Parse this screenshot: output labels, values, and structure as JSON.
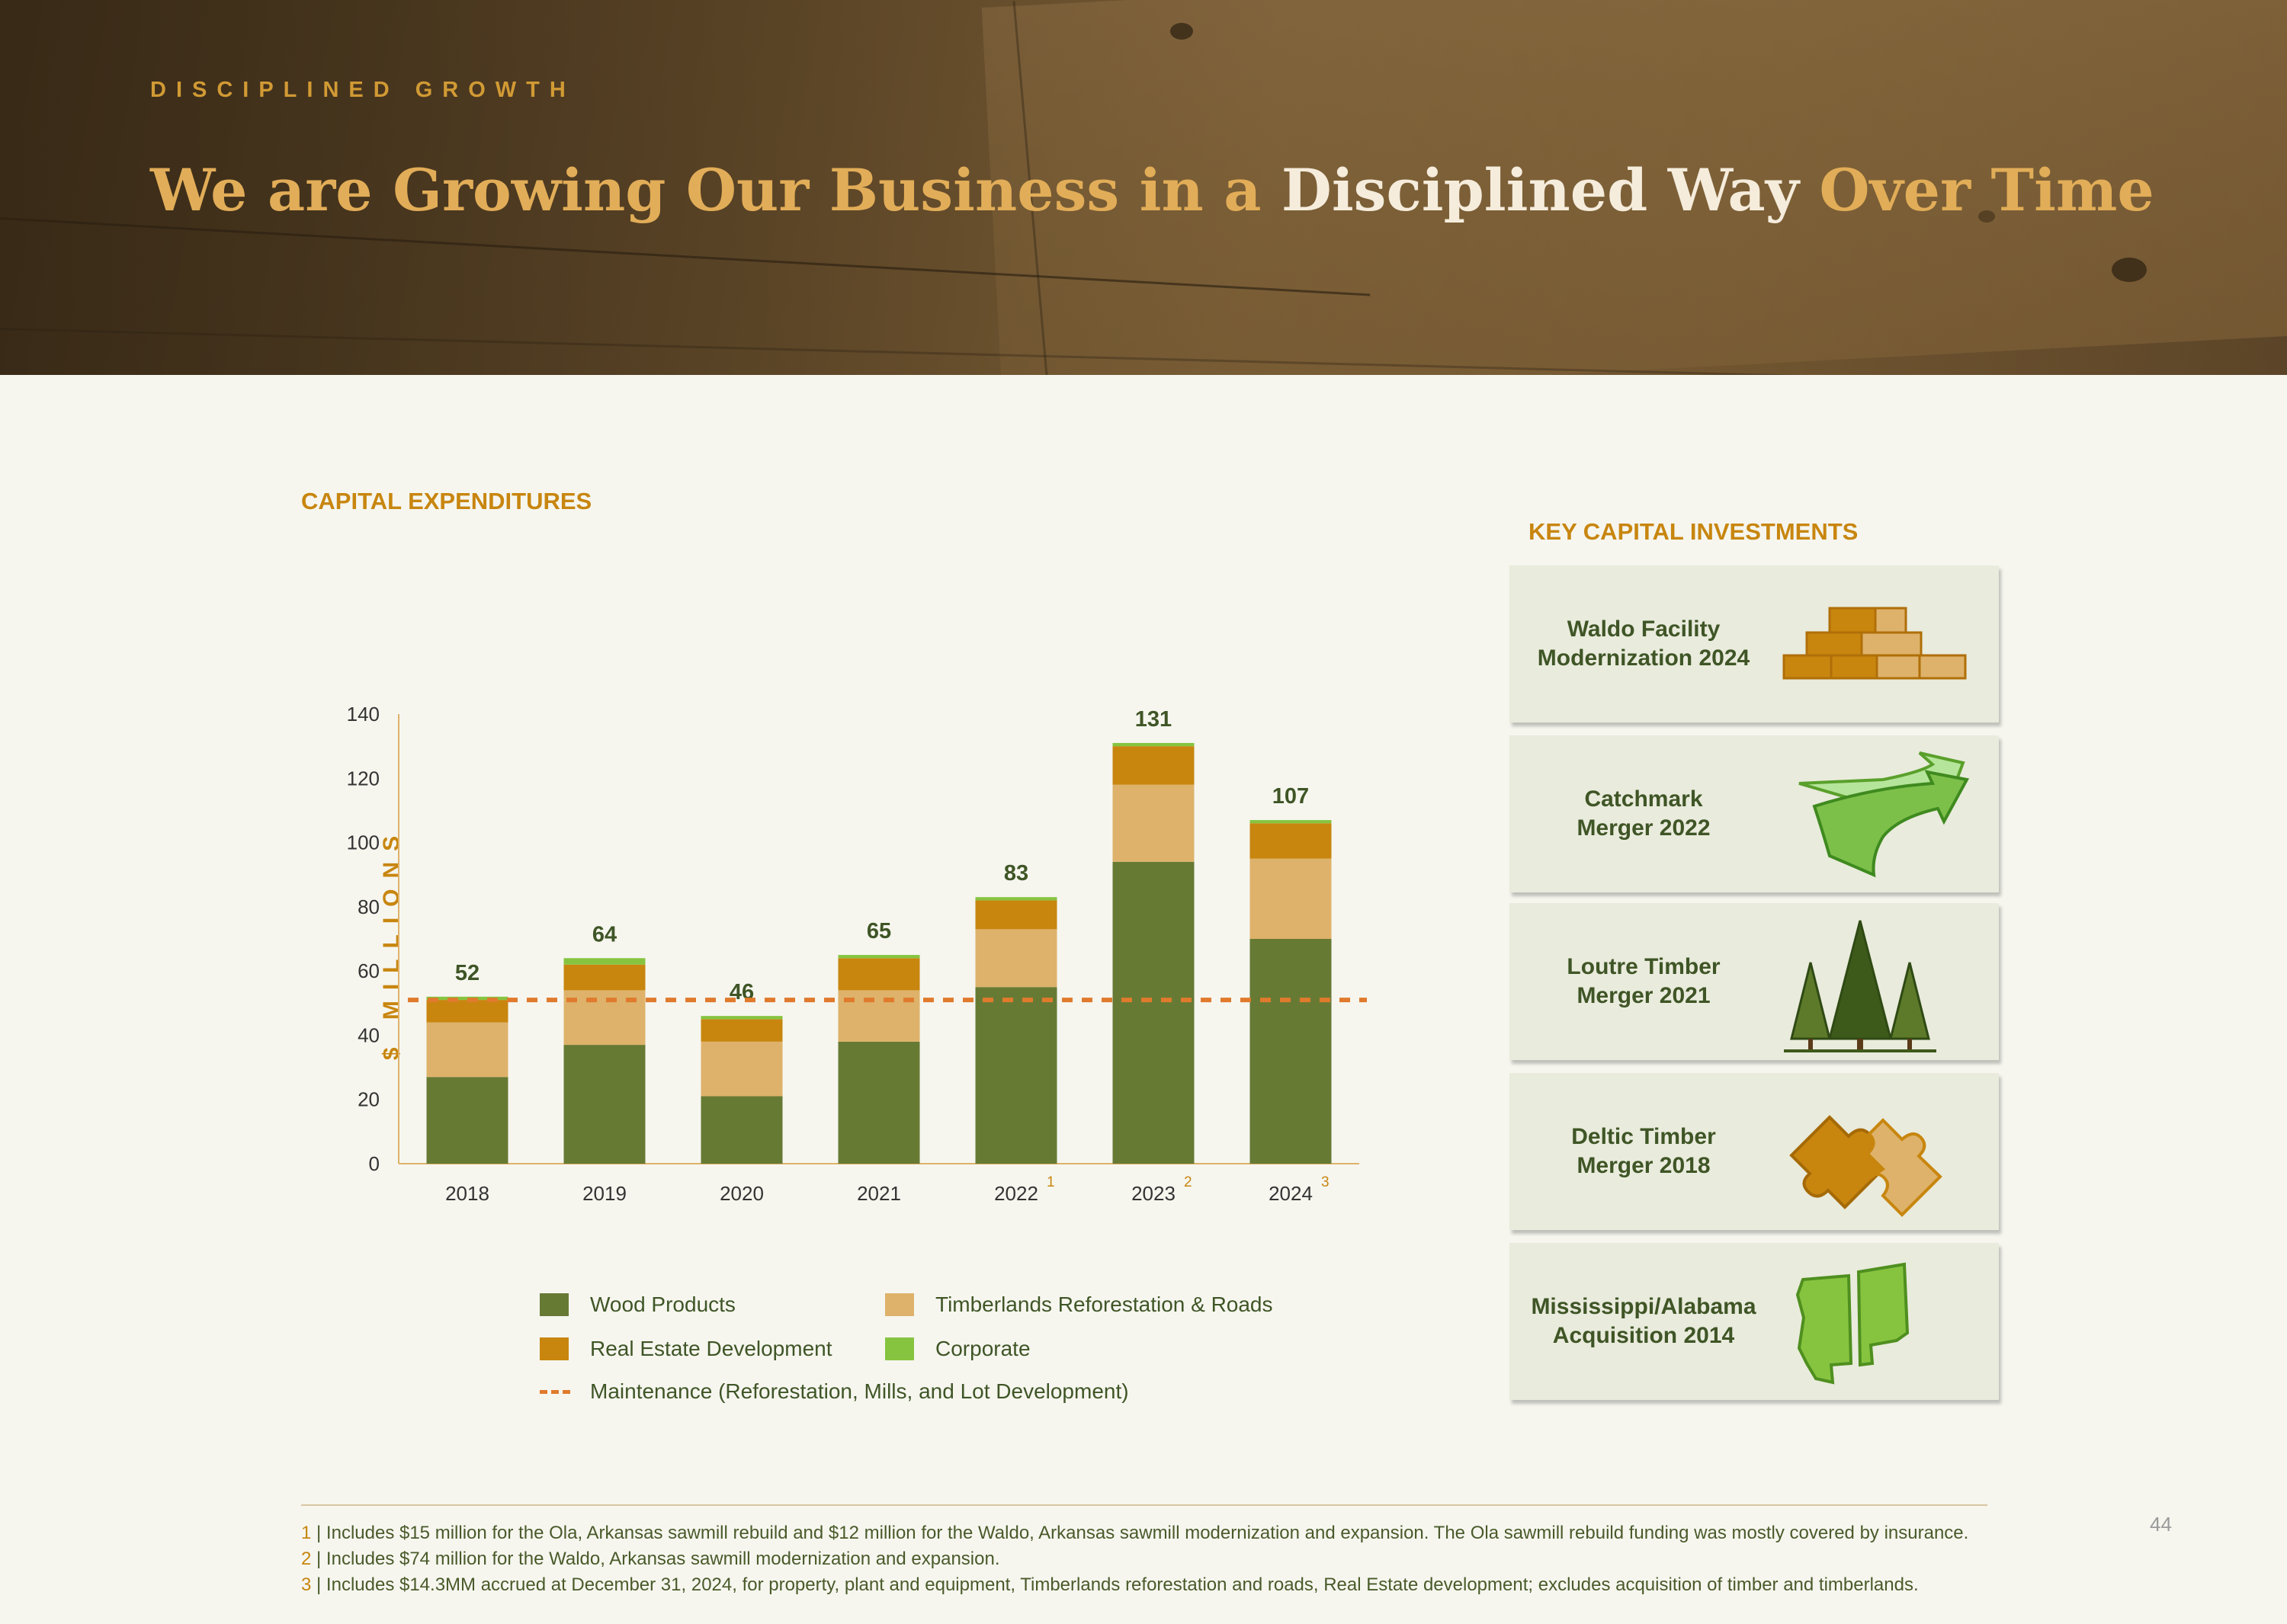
{
  "header": {
    "kicker": "DISCIPLINED GROWTH",
    "title_part1": "We are Growing Our Business  in a ",
    "title_part2": "Disciplined Way",
    "title_part3": " Over Time"
  },
  "capex_title": "CAPITAL EXPENDITURES",
  "y_axis_label": "$ MILLIONS",
  "chart_data": {
    "type": "bar",
    "stacked": true,
    "categories": [
      "2018",
      "2019",
      "2020",
      "2021",
      "2022",
      "2023",
      "2024"
    ],
    "footnote_marks": [
      "",
      "",
      "",
      "",
      "1",
      "2",
      "3"
    ],
    "series": [
      {
        "name": "Wood Products",
        "values": [
          27,
          37,
          21,
          38,
          55,
          94,
          70
        ],
        "color": "#677a34"
      },
      {
        "name": "Timberlands Reforestation & Roads",
        "values": [
          17,
          17,
          17,
          16,
          18,
          24,
          25
        ],
        "color": "#deb26a"
      },
      {
        "name": "Real Estate Development",
        "values": [
          7,
          8,
          7,
          10,
          9,
          12,
          11
        ],
        "color": "#c8860f"
      },
      {
        "name": "Corporate",
        "values": [
          1,
          2,
          1,
          1,
          1,
          1,
          1
        ],
        "color": "#86c440"
      }
    ],
    "totals": [
      52,
      64,
      46,
      65,
      83,
      131,
      107
    ],
    "maintenance": {
      "name": "Maintenance (Reforestation, Mills, and Lot Development)",
      "value": 51,
      "color": "#e07a2c"
    },
    "yticks": [
      0,
      20,
      40,
      60,
      80,
      100,
      120,
      140
    ],
    "ylim": [
      0,
      140
    ],
    "ylabel": "$ MILLIONS",
    "grid": false,
    "legend_position": "bottom"
  },
  "legend": {
    "wood": "Wood Products",
    "timber": "Timberlands Reforestation & Roads",
    "realestate": "Real Estate Development",
    "corporate": "Corporate",
    "maintenance": "Maintenance (Reforestation, Mills, and Lot Development)"
  },
  "key_investments": {
    "title": "KEY CAPITAL INVESTMENTS",
    "items": [
      {
        "label": "Waldo Facility\nModernization 2024",
        "icon": "lumber-stack-icon"
      },
      {
        "label": "Catchmark\nMerger 2022",
        "icon": "curved-arrow-icon"
      },
      {
        "label": "Loutre Timber\nMerger 2021",
        "icon": "pine-trees-icon"
      },
      {
        "label": "Deltic Timber\nMerger 2018",
        "icon": "puzzle-pieces-icon"
      },
      {
        "label": "Mississippi/Alabama\nAcquisition 2014",
        "icon": "state-map-icon"
      }
    ]
  },
  "footnotes": [
    {
      "num": "1",
      "text": " | Includes $15 million for the Ola, Arkansas sawmill rebuild and $12 million for the Waldo, Arkansas sawmill modernization and expansion. The Ola sawmill rebuild funding was mostly covered by insurance."
    },
    {
      "num": "2",
      "text": " | Includes $74 million for the Waldo, Arkansas sawmill modernization and expansion."
    },
    {
      "num": "3",
      "text": " | Includes $14.3MM accrued at December 31, 2024, for property, plant and equipment, Timberlands reforestation and roads, Real Estate development; excludes acquisition of timber and timberlands."
    }
  ],
  "page_number": "44"
}
